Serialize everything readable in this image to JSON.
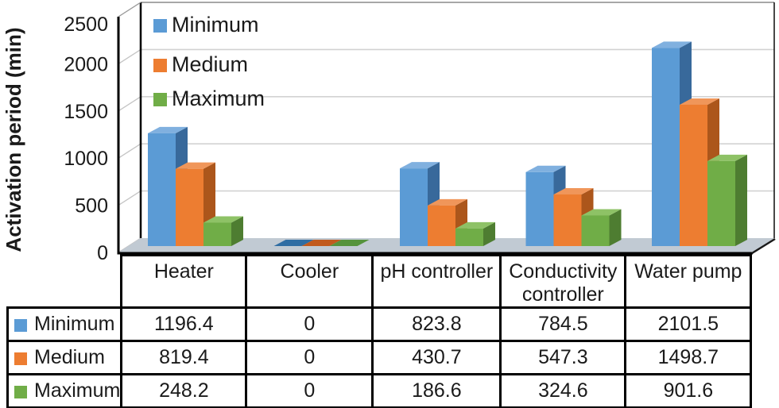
{
  "chart_data": {
    "type": "bar",
    "style": "3d-clustered",
    "title": "",
    "ylabel": "Activation period (min)",
    "xlabel": "",
    "categories": [
      "Heater",
      "Cooler",
      "pH controller",
      "Conductivity controller",
      "Water pump"
    ],
    "series": [
      {
        "name": "Minimum",
        "values": [
          1196.4,
          0,
          823.8,
          784.5,
          2101.5
        ],
        "colors": {
          "front": "#5B9BD5",
          "top": "#80B0DF",
          "side": "#38699B",
          "flat": "#2F6DA3"
        }
      },
      {
        "name": "Medium",
        "values": [
          819.4,
          0,
          430.7,
          547.3,
          1498.7
        ],
        "colors": {
          "front": "#ED7D31",
          "top": "#F0965A",
          "side": "#AC561B",
          "flat": "#C15A1E"
        }
      },
      {
        "name": "Maximum",
        "values": [
          248.2,
          0,
          186.6,
          324.6,
          901.6
        ],
        "colors": {
          "front": "#70AD47",
          "top": "#8EC266",
          "side": "#4E7D31",
          "flat": "#55933C"
        }
      }
    ],
    "yticks": [
      "0",
      "500",
      "1000",
      "1500",
      "2000",
      "2500"
    ],
    "ylim": [
      0,
      2500
    ],
    "grid": true,
    "legend_position": "top-left-inside",
    "legend_entries": [
      "Minimum",
      "Medium",
      "Maximum"
    ]
  },
  "table": {
    "columns": [
      "",
      "Heater",
      "Cooler",
      "pH controller",
      "Conductivity controller",
      "Water pump"
    ],
    "rows": [
      {
        "label": "Minimum",
        "swatch_color": "#5B9BD5",
        "values": [
          "1196.4",
          "0",
          "823.8",
          "784.5",
          "2101.5"
        ]
      },
      {
        "label": "Medium",
        "swatch_color": "#ED7D31",
        "values": [
          "819.4",
          "0",
          "430.7",
          "547.3",
          "1498.7"
        ]
      },
      {
        "label": "Maximum",
        "swatch_color": "#70AD47",
        "values": [
          "248.2",
          "0",
          "186.6",
          "324.6",
          "901.6"
        ]
      }
    ]
  },
  "colors": {
    "floor": "#C1CAD3",
    "gridline": "#D2D2D2",
    "wall_top_line": "#8A8A8A",
    "axis_line": "#000000",
    "text": "#1a1a1a"
  }
}
